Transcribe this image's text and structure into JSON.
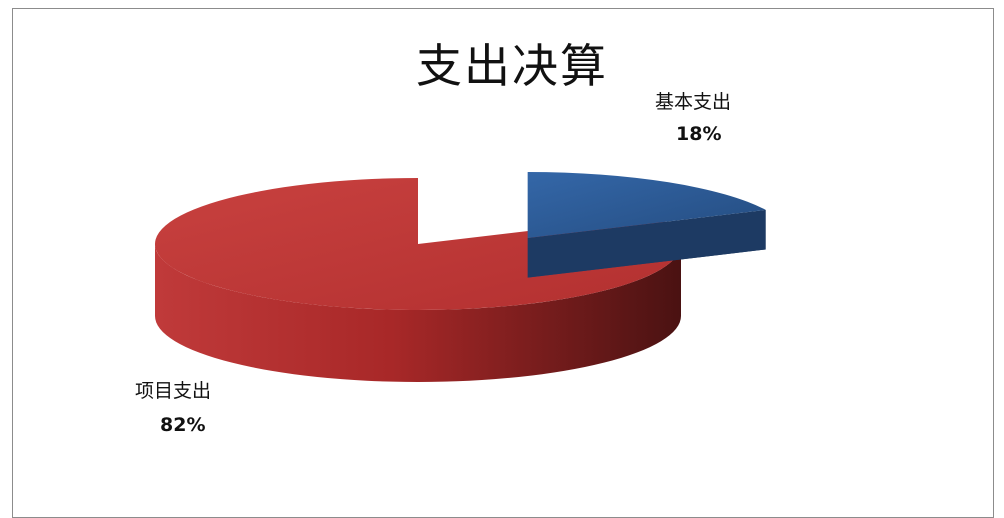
{
  "chart_data": {
    "type": "pie",
    "title": "支出决算",
    "slices": [
      {
        "name": "项目支出",
        "value": 82,
        "label": "82%",
        "color": "#b83232"
      },
      {
        "name": "基本支出",
        "value": 18,
        "label": "18%",
        "color": "#2a5a93",
        "exploded": true
      }
    ],
    "style": "3d",
    "legend": "none"
  }
}
